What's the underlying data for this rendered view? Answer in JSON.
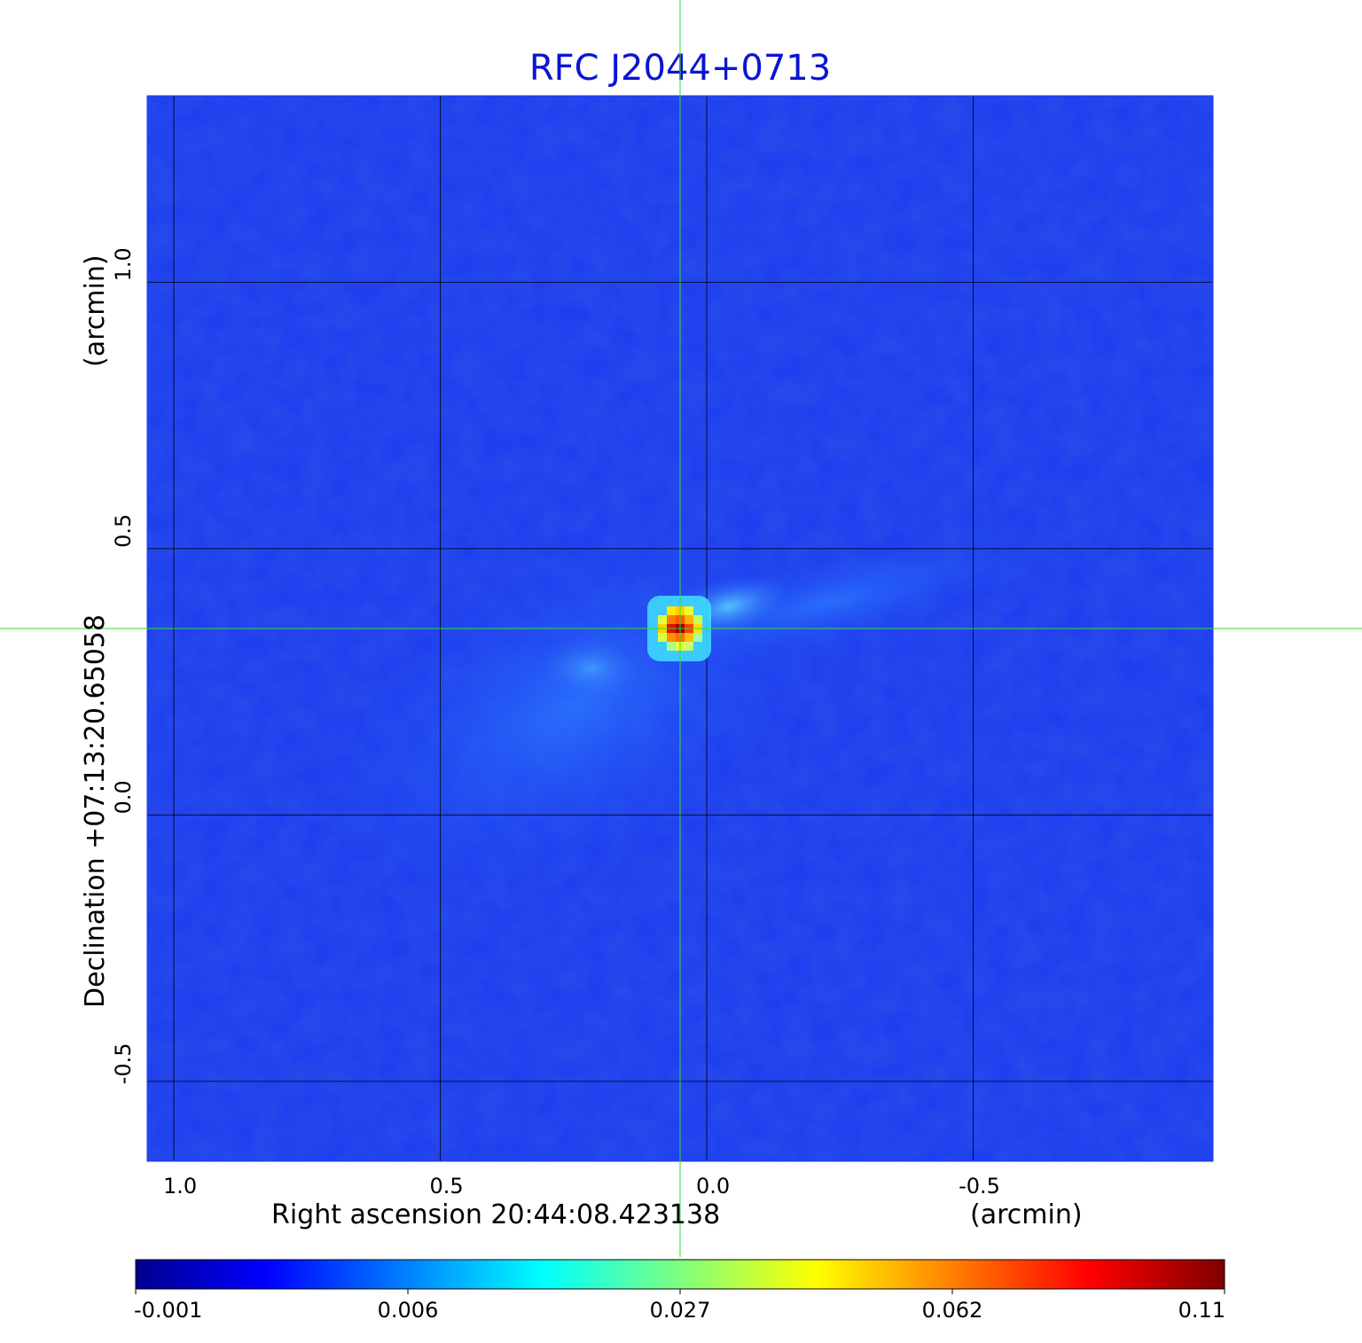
{
  "chart_data": {
    "type": "heatmap",
    "title": "RFC J2044+0713",
    "title_color": "#0a14d4",
    "xlabel_left": "Right ascension  20:44:08.423138",
    "xlabel_right": "(arcmin)",
    "ylabel_left": "Declination  +07:13:20.65058",
    "ylabel_right": "(arcmin)",
    "xlim": [
      1.05,
      -0.95
    ],
    "ylim": [
      -0.65,
      1.35
    ],
    "x_ticks": [
      1.0,
      0.5,
      0.0,
      -0.5
    ],
    "x_tick_labels": [
      "1.0",
      "0.5",
      "0.0",
      "-0.5"
    ],
    "y_ticks": [
      1.0,
      0.5,
      0.0,
      -0.5
    ],
    "y_tick_labels": [
      "1.0",
      "0.5",
      "0.0",
      "-0.5"
    ],
    "grid": true,
    "crosshair": {
      "x": 0.05,
      "y": 0.35,
      "color": "#33dd33"
    },
    "peak": {
      "x": 0.05,
      "y": 0.35,
      "value": 0.11
    },
    "colorbar": {
      "ticks": [
        -0.001,
        0.006,
        0.027,
        0.062,
        0.11
      ],
      "tick_labels": [
        "-0.001",
        "0.006",
        "0.027",
        "0.062",
        "0.11"
      ],
      "colormap": "jet"
    },
    "colors": {
      "background_map": "#1c3cf0",
      "grid": "#000000"
    }
  }
}
